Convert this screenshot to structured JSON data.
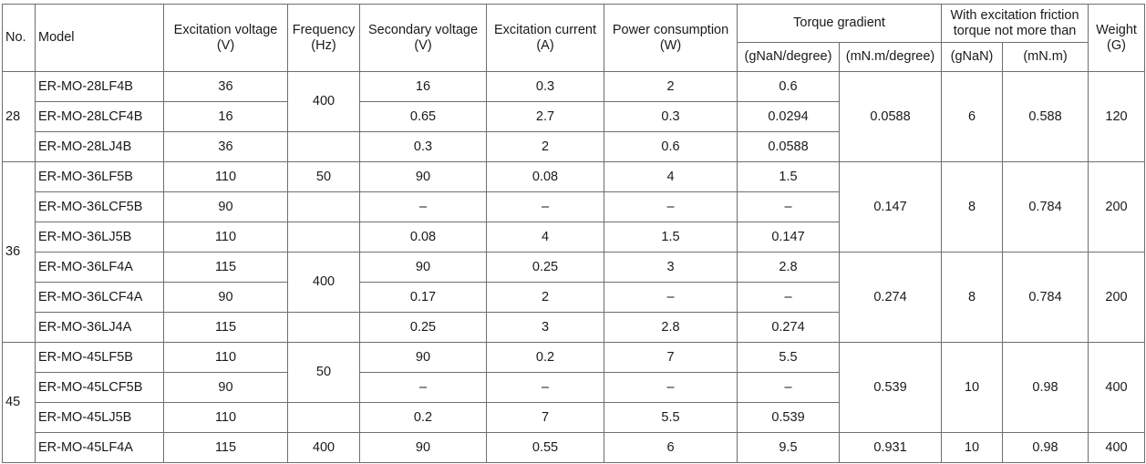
{
  "headers": {
    "no": "No.",
    "model": "Model",
    "excitation_voltage": "Excitation voltage\n(V)",
    "frequency": "Frequency\n(Hz)",
    "secondary_voltage": "Secondary voltage\n(V)",
    "excitation_current": "Excitation current\n(A)",
    "power_consumption": "Power consumption\n(W)",
    "torque_gradient": "Torque gradient",
    "torque_gradient_gnan": "(gNaN/degree)",
    "torque_gradient_mnm": "(mN.m/degree)",
    "friction_torque": "With excitation friction\ntorque not more than",
    "friction_gnan": "(gNaN)",
    "friction_mnm": "(mN.m)",
    "weight": "Weight\n(G)"
  },
  "groups": {
    "g28": "28",
    "g36": "36",
    "g45": "45"
  },
  "rows": [
    {
      "model": "ER-MO-28LF4B",
      "ev": "36",
      "sv": "16",
      "ec": "0.3",
      "pc": "2",
      "tg": "0.6"
    },
    {
      "model": "ER-MO-28LCF4B",
      "ev": "16",
      "sv": "0.65",
      "ec": "2.7",
      "pc": "0.3",
      "tg": "0.0294"
    },
    {
      "model": "ER-MO-28LJ4B",
      "ev": "36",
      "sv": "0.3",
      "ec": "2",
      "pc": "0.6",
      "tg": "0.0588"
    },
    {
      "model": "ER-MO-36LF5B",
      "ev": "110",
      "sv": "90",
      "ec": "0.08",
      "pc": "4",
      "tg": "1.5"
    },
    {
      "model": "ER-MO-36LCF5B",
      "ev": "90",
      "sv": "–",
      "ec": "–",
      "pc": "–",
      "tg": "–"
    },
    {
      "model": "ER-MO-36LJ5B",
      "ev": "110",
      "sv": "0.08",
      "ec": "4",
      "pc": "1.5",
      "tg": "0.147"
    },
    {
      "model": "ER-MO-36LF4A",
      "ev": "115",
      "sv": "90",
      "ec": "0.25",
      "pc": "3",
      "tg": "2.8"
    },
    {
      "model": "ER-MO-36LCF4A",
      "ev": "90",
      "sv": "0.17",
      "ec": "2",
      "pc": "–",
      "tg": "–"
    },
    {
      "model": "ER-MO-36LJ4A",
      "ev": "115",
      "sv": "0.25",
      "ec": "3",
      "pc": "2.8",
      "tg": "0.274"
    },
    {
      "model": "ER-MO-45LF5B",
      "ev": "110",
      "sv": "90",
      "ec": "0.2",
      "pc": "7",
      "tg": "5.5"
    },
    {
      "model": "ER-MO-45LCF5B",
      "ev": "90",
      "sv": "–",
      "ec": "–",
      "pc": "–",
      "tg": "–"
    },
    {
      "model": "ER-MO-45LJ5B",
      "ev": "110",
      "sv": "0.2",
      "ec": "7",
      "pc": "5.5",
      "tg": "0.539"
    },
    {
      "model": "ER-MO-45LF4A",
      "ev": "115",
      "sv": "90",
      "ec": "0.55",
      "pc": "6",
      "tg": "9.5"
    }
  ],
  "merged": {
    "freq_28": "400",
    "freq_36a": "50",
    "freq_36b": "400",
    "freq_45a": "50",
    "freq_45b": "400",
    "tgm_28": "0.0588",
    "fg_28": "6",
    "fm_28": "0.588",
    "w_28": "120",
    "tgm_36a": "0.147",
    "fg_36a": "8",
    "fm_36a": "0.784",
    "w_36a": "200",
    "tgm_36b": "0.274",
    "fg_36b": "8",
    "fm_36b": "0.784",
    "w_36b": "200",
    "tgm_45a": "0.539",
    "fg_45a": "10",
    "fm_45a": "0.98",
    "w_45a": "400",
    "tgm_45b": "0.931",
    "fg_45b": "10",
    "fm_45b": "0.98",
    "w_45b": "400"
  }
}
